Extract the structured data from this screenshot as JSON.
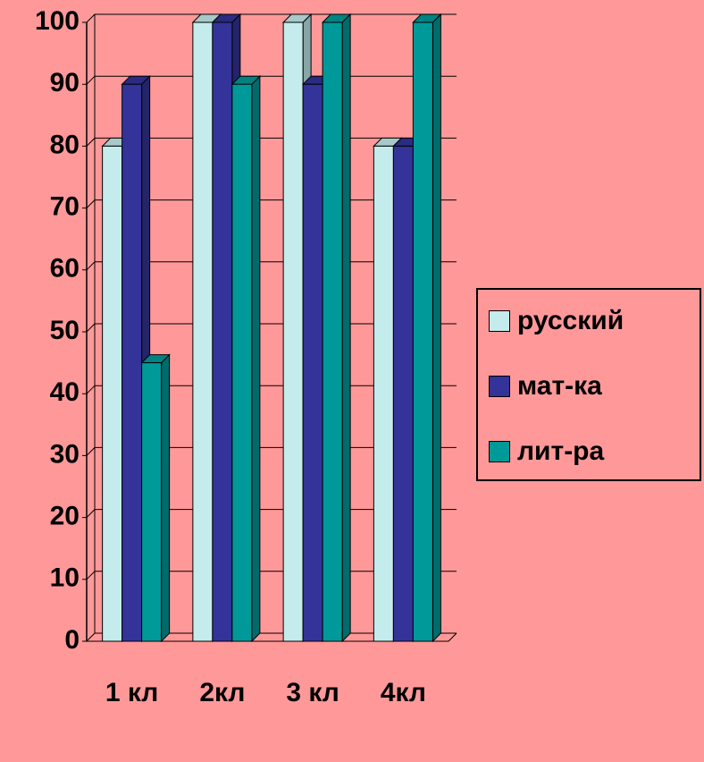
{
  "chart_data": {
    "type": "bar",
    "categories": [
      "1 кл",
      "2кл",
      "3 кл",
      "4кл"
    ],
    "series": [
      {
        "name": "русский",
        "color": "#c4ecec",
        "values": [
          80,
          100,
          100,
          80
        ]
      },
      {
        "name": "мат-ка",
        "color": "#333399",
        "values": [
          90,
          100,
          90,
          80
        ]
      },
      {
        "name": "лит-ра",
        "color": "#009999",
        "values": [
          45,
          90,
          100,
          100
        ]
      }
    ],
    "ylim": [
      0,
      100
    ],
    "yticks": [
      0,
      10,
      20,
      30,
      40,
      50,
      60,
      70,
      80,
      90,
      100
    ],
    "grid": true,
    "legend": "right"
  }
}
